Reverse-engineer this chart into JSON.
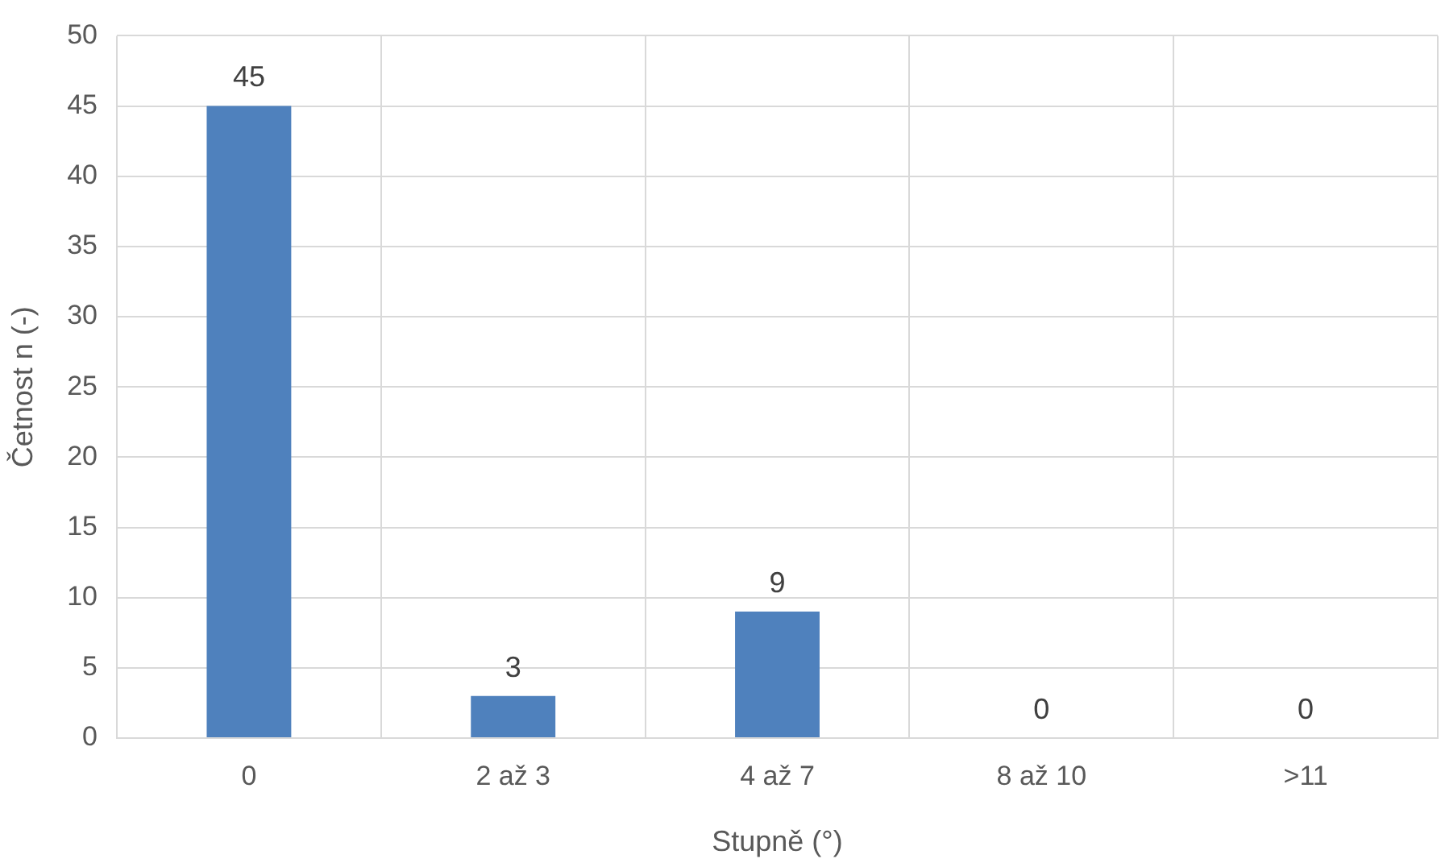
{
  "chart_data": {
    "type": "bar",
    "xlabel": "Stupně (°)",
    "ylabel": "Četnost n (-)",
    "categories": [
      "0",
      "2 až 3",
      "4 až 7",
      "8 až 10",
      ">11"
    ],
    "values": [
      45,
      3,
      9,
      0,
      0
    ],
    "color": "#4f81bd",
    "ylim": [
      0,
      50
    ],
    "yticks": [
      0,
      5,
      10,
      15,
      20,
      25,
      30,
      35,
      40,
      45,
      50
    ],
    "grid": true,
    "data_labels": true
  }
}
